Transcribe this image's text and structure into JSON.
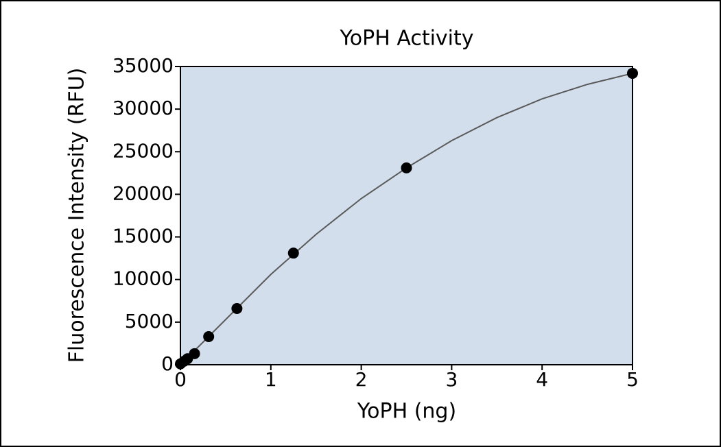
{
  "chart_data": {
    "type": "scatter",
    "title": "YoPH Activity",
    "x_label": "YoPH (ng)",
    "y_label": "Fluorescence Intensity (RFU)",
    "series": [
      {
        "type": "scatter",
        "color": "#000000",
        "x": [
          0,
          0.039,
          0.078,
          0.156,
          0.3125,
          0.625,
          1.25,
          2.5,
          5
        ],
        "values": [
          100,
          400,
          700,
          1300,
          3300,
          6600,
          13100,
          23100,
          34200
        ]
      },
      {
        "type": "line",
        "color": "#5a5a5a",
        "x": [
          0,
          0.5,
          1,
          1.5,
          2,
          2.5,
          3,
          3.5,
          4,
          4.5,
          5
        ],
        "values": [
          0,
          5300,
          10600,
          15300,
          19500,
          23100,
          26300,
          29000,
          31200,
          32900,
          34200
        ]
      }
    ],
    "xlim": [
      0,
      5
    ],
    "xticks": [
      0,
      1,
      2,
      3,
      4,
      5
    ],
    "ylim": [
      0,
      35000
    ],
    "yticks": [
      0,
      5000,
      10000,
      15000,
      20000,
      25000,
      30000,
      35000
    ],
    "plot_background": "#d3deec"
  }
}
